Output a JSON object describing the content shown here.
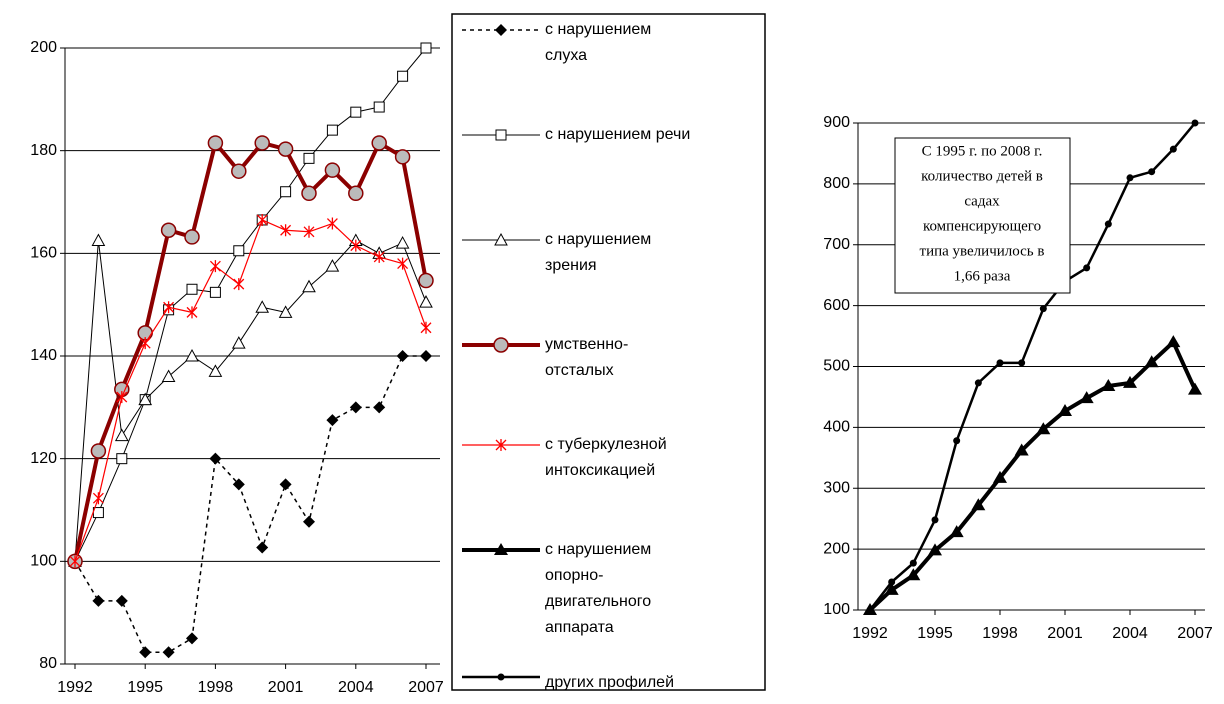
{
  "chart_data": [
    {
      "type": "line",
      "x": [
        1992,
        1993,
        1994,
        1995,
        1996,
        1997,
        1998,
        1999,
        2000,
        2001,
        2002,
        2003,
        2004,
        2005,
        2006,
        2007
      ],
      "xlim": [
        1992,
        2007
      ],
      "xticks": [
        1992,
        1995,
        1998,
        2001,
        2004,
        2007
      ],
      "ylim": [
        80,
        200
      ],
      "yticks": [
        80,
        100,
        120,
        140,
        160,
        180,
        200
      ],
      "grid": true,
      "series": [
        {
          "name": "с нарушением\nслуха",
          "color": "#000000",
          "marker": "diamond",
          "dash": true,
          "width": 1.5,
          "values": [
            100,
            92.3,
            92.3,
            82.3,
            82.3,
            85,
            120,
            115,
            102.7,
            115,
            107.7,
            127.5,
            130,
            130,
            140,
            140
          ]
        },
        {
          "name": "с нарушением речи",
          "color": "#000000",
          "marker": "square",
          "width": 1,
          "values": [
            100,
            109.5,
            120,
            131.5,
            149,
            153,
            152.4,
            160.5,
            166.5,
            172,
            178.5,
            184,
            187.5,
            188.5,
            194.5,
            200
          ]
        },
        {
          "name": "с нарушением\nзрения",
          "color": "#000000",
          "marker": "triangle",
          "width": 1,
          "values": [
            100,
            162.5,
            124.5,
            131.5,
            136,
            140,
            137,
            142.5,
            149.5,
            148.5,
            153.5,
            157.5,
            162.5,
            160,
            162,
            150.5
          ]
        },
        {
          "name": "умственно-\nотсталых",
          "color": "#8b0000",
          "marker": "circle",
          "width": 4,
          "values": [
            100,
            121.5,
            133.5,
            144.5,
            164.5,
            163.2,
            181.5,
            176,
            181.5,
            180.3,
            171.7,
            176.2,
            171.7,
            181.5,
            178.8,
            154.7
          ]
        },
        {
          "name": "с туберкулезной\nинтоксикацией",
          "color": "#ff0000",
          "marker": "asterisk",
          "width": 1.2,
          "values": [
            100,
            112.3,
            132,
            142.5,
            149.5,
            148.5,
            157.5,
            154,
            166.5,
            164.5,
            164.2,
            165.8,
            161.5,
            159.3,
            158,
            145.5
          ]
        }
      ]
    },
    {
      "type": "line",
      "x": [
        1992,
        1993,
        1994,
        1995,
        1996,
        1997,
        1998,
        1999,
        2000,
        2001,
        2002,
        2003,
        2004,
        2005,
        2006,
        2007
      ],
      "xlim": [
        1992,
        2007
      ],
      "xticks": [
        1992,
        1995,
        1998,
        2001,
        2004,
        2007
      ],
      "ylim": [
        100,
        900
      ],
      "yticks": [
        100,
        200,
        300,
        400,
        500,
        600,
        700,
        800,
        900
      ],
      "grid": true,
      "annotation": [
        "С 1995 г. по 2008 г.",
        "количество детей в",
        "садах",
        "компенсирующего",
        "типа увеличилось в",
        "1,66 раза"
      ],
      "series": [
        {
          "name": "с нарушением\nопорно-\nдвигательного\nаппарата",
          "color": "#000000",
          "marker": "filled-triangle",
          "width": 4,
          "values": [
            100,
            133,
            157,
            198,
            228,
            272,
            317,
            362,
            397,
            427,
            448,
            468,
            473,
            507,
            540,
            462
          ]
        },
        {
          "name": "других профилей",
          "color": "#000000",
          "marker": "dot",
          "width": 2.5,
          "values": [
            100,
            146,
            177,
            248,
            378,
            473,
            506,
            506,
            595,
            640,
            662,
            734,
            810,
            820,
            857,
            900
          ]
        }
      ]
    }
  ]
}
